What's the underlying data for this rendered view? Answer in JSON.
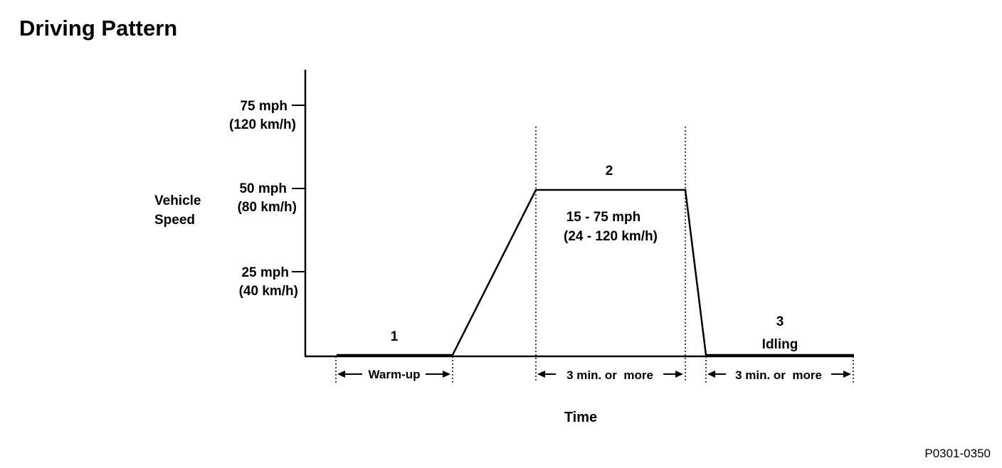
{
  "title": "Driving Pattern",
  "figure_code": "P0301-0350",
  "y_axis": {
    "label_lines": [
      "Vehicle",
      "Speed"
    ],
    "ticks": [
      {
        "speed_mph": 75,
        "mph": "75 mph",
        "kmh": "(120 km/h)"
      },
      {
        "speed_mph": 50,
        "mph": "50 mph",
        "kmh": "(80 km/h)"
      },
      {
        "speed_mph": 25,
        "mph": "25 mph",
        "kmh": "(40 km/h)"
      }
    ]
  },
  "x_axis": {
    "label": "Time"
  },
  "phases": [
    {
      "number": "1",
      "name": "",
      "duration_label": "Warm-up"
    },
    {
      "number": "2",
      "name": "",
      "speed_range_lines": [
        "15 - 75 mph",
        "(24 - 120 km/h)"
      ],
      "duration_label": "3 min. or  more"
    },
    {
      "number": "3",
      "name": "Idling",
      "duration_label": "3 min. or  more"
    }
  ],
  "profile": {
    "cruise_speed_mph": 50,
    "idle_speed_mph": 0
  }
}
